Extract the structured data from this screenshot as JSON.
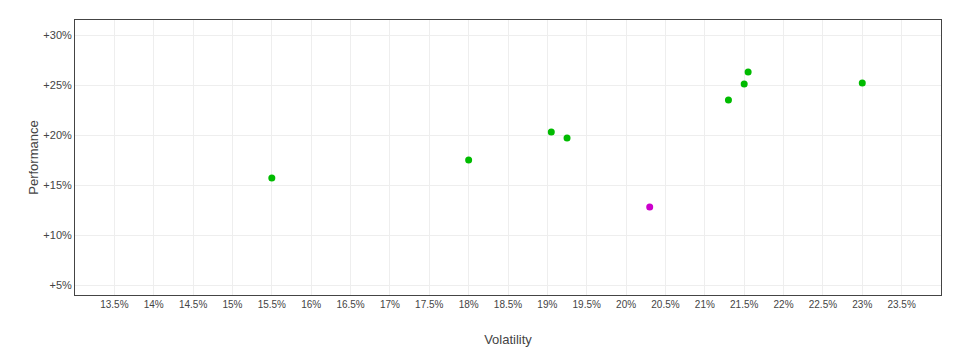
{
  "chart_data": {
    "type": "scatter",
    "x_label": "Volatility",
    "y_label": "Performance",
    "series": [
      {
        "color": "#00bb00",
        "x": [
          15.5,
          18.0,
          19.05,
          19.25,
          21.3,
          21.5,
          21.55,
          23.0
        ],
        "values": [
          15.7,
          17.5,
          20.3,
          19.7,
          23.5,
          25.1,
          26.3,
          25.2
        ]
      },
      {
        "color": "#cc00cc",
        "x": [
          20.3
        ],
        "values": [
          12.8
        ]
      }
    ],
    "xlim": [
      13.0,
      24.0
    ],
    "ylim": [
      4.0,
      31.5
    ],
    "xticks": [
      {
        "value": 13.5,
        "label": "13.5%"
      },
      {
        "value": 14.0,
        "label": "14%"
      },
      {
        "value": 14.5,
        "label": "14.5%"
      },
      {
        "value": 15.0,
        "label": "15%"
      },
      {
        "value": 15.5,
        "label": "15.5%"
      },
      {
        "value": 16.0,
        "label": "16%"
      },
      {
        "value": 16.5,
        "label": "16.5%"
      },
      {
        "value": 17.0,
        "label": "17%"
      },
      {
        "value": 17.5,
        "label": "17.5%"
      },
      {
        "value": 18.0,
        "label": "18%"
      },
      {
        "value": 18.5,
        "label": "18.5%"
      },
      {
        "value": 19.0,
        "label": "19%"
      },
      {
        "value": 19.5,
        "label": "19.5%"
      },
      {
        "value": 20.0,
        "label": "20%"
      },
      {
        "value": 20.5,
        "label": "20.5%"
      },
      {
        "value": 21.0,
        "label": "21%"
      },
      {
        "value": 21.5,
        "label": "21.5%"
      },
      {
        "value": 22.0,
        "label": "22%"
      },
      {
        "value": 22.5,
        "label": "22.5%"
      },
      {
        "value": 23.0,
        "label": "23%"
      },
      {
        "value": 23.5,
        "label": "23.5%"
      }
    ],
    "yticks": [
      {
        "value": 5,
        "label": "+5%"
      },
      {
        "value": 10,
        "label": "+10%"
      },
      {
        "value": 15,
        "label": "+15%"
      },
      {
        "value": 20,
        "label": "+20%"
      },
      {
        "value": 25,
        "label": "+25%"
      },
      {
        "value": 30,
        "label": "+30%"
      }
    ],
    "grid": true
  }
}
